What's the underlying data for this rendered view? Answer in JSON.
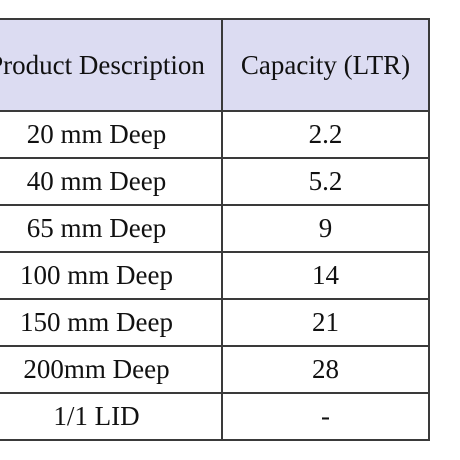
{
  "table": {
    "header": [
      "Product Description",
      "Capacity (LTR)"
    ],
    "rows": [
      [
        "20 mm Deep",
        "2.2"
      ],
      [
        "40 mm Deep",
        "5.2"
      ],
      [
        "65 mm Deep",
        "9"
      ],
      [
        "100 mm Deep",
        "14"
      ],
      [
        "150 mm Deep",
        "21"
      ],
      [
        "200mm Deep",
        "28"
      ],
      [
        "1/1 LID",
        "-"
      ]
    ]
  }
}
